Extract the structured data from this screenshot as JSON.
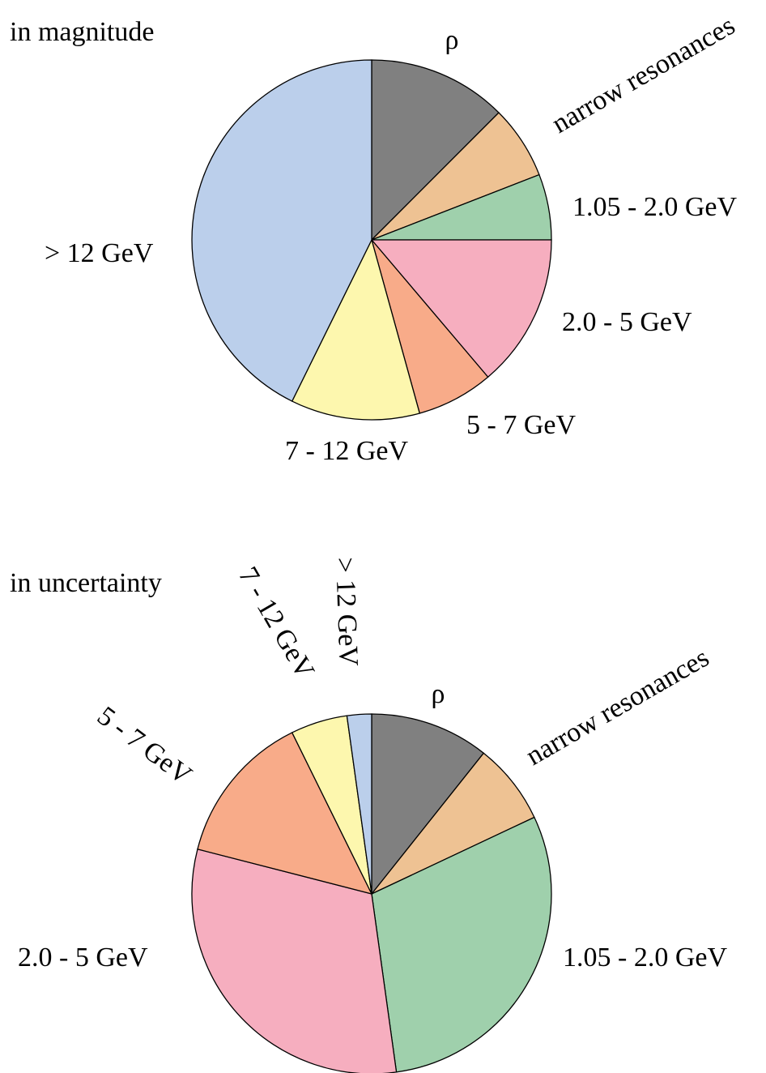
{
  "chart_data": [
    {
      "type": "pie",
      "title": "in magnitude",
      "direction": "clockwise",
      "start": "12 o'clock",
      "slices": [
        {
          "label": "ρ",
          "percent": 12.5,
          "color": "#808080"
        },
        {
          "label": "narrow resonances",
          "percent": 6.6,
          "color": "#eec293"
        },
        {
          "label": "1.05 - 2.0 GeV",
          "percent": 5.9,
          "color": "#9fd0ac"
        },
        {
          "label": "2.0 - 5 GeV",
          "percent": 13.8,
          "color": "#f6aebf"
        },
        {
          "label": "5 - 7 GeV",
          "percent": 6.9,
          "color": "#f8ab89"
        },
        {
          "label": "7 - 12 GeV",
          "percent": 11.6,
          "color": "#fdf7ae"
        },
        {
          "label": "> 12 GeV",
          "percent": 42.7,
          "color": "#bbcfeb"
        }
      ]
    },
    {
      "type": "pie",
      "title": "in uncertainty",
      "direction": "clockwise",
      "start": "12 o'clock",
      "slices": [
        {
          "label": "ρ",
          "percent": 10.7,
          "color": "#808080"
        },
        {
          "label": "narrow resonances",
          "percent": 7.3,
          "color": "#eec293"
        },
        {
          "label": "1.05 - 2.0 GeV",
          "percent": 29.8,
          "color": "#9fd0ac"
        },
        {
          "label": "2.0 - 5 GeV",
          "percent": 31.2,
          "color": "#f6aebf"
        },
        {
          "label": "5 - 7 GeV",
          "percent": 13.7,
          "color": "#f8ab89"
        },
        {
          "label": "7 - 12 GeV",
          "percent": 5.1,
          "color": "#fdf7ae"
        },
        {
          "label": "> 12 GeV",
          "percent": 2.2,
          "color": "#bbcfeb"
        }
      ]
    }
  ]
}
